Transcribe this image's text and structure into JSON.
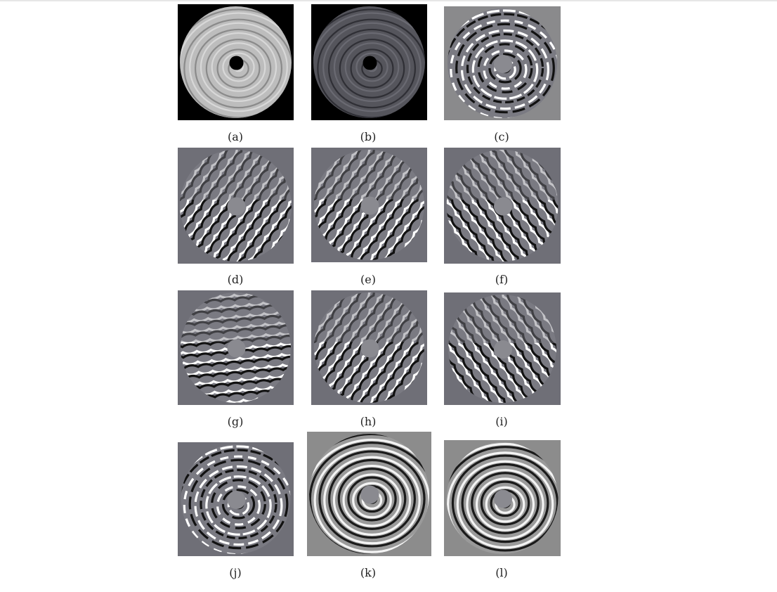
{
  "figure": {
    "panels": [
      {
        "id": "a",
        "caption": "(a)",
        "style": "fp-original"
      },
      {
        "id": "b",
        "caption": "(b)",
        "style": "fp-dark"
      },
      {
        "id": "c",
        "caption": "(c)",
        "style": "filtered-concentric"
      },
      {
        "id": "d",
        "caption": "(d)",
        "style": "filtered-diag-right"
      },
      {
        "id": "e",
        "caption": "(e)",
        "style": "filtered-diag-right"
      },
      {
        "id": "f",
        "caption": "(f)",
        "style": "filtered-diag-left"
      },
      {
        "id": "g",
        "caption": "(g)",
        "style": "filtered-vertical"
      },
      {
        "id": "h",
        "caption": "(h)",
        "style": "filtered-diag-right"
      },
      {
        "id": "i",
        "caption": "(i)",
        "style": "filtered-diag-left"
      },
      {
        "id": "j",
        "caption": "(j)",
        "style": "filtered-concentric"
      },
      {
        "id": "k",
        "caption": "(k)",
        "style": "enhanced-concentric"
      },
      {
        "id": "l",
        "caption": "(l)",
        "style": "enhanced-concentric"
      }
    ]
  }
}
